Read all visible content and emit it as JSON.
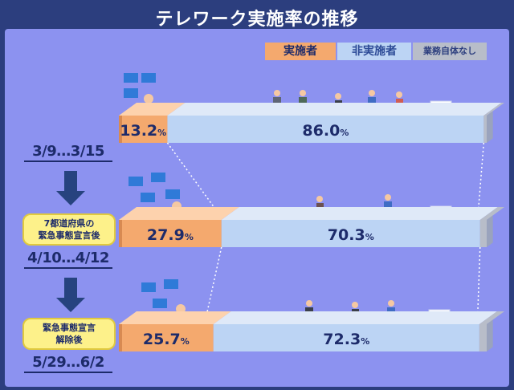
{
  "header": {
    "title": "テレワーク実施率の推移"
  },
  "legend": {
    "done": "実施者",
    "not_done": "非実施者",
    "no_work": "業務自体なし"
  },
  "rows": [
    {
      "period": "3/9…3/15",
      "note": ""
    },
    {
      "period": "4/10…4/12",
      "note": "7都道府県の\n緊急事態宣言後"
    },
    {
      "period": "5/29…6/2",
      "note": "緊急事態宣言\n解除後"
    }
  ],
  "chart_data": {
    "type": "bar",
    "stacked": true,
    "orientation": "horizontal",
    "title": "テレワーク実施率の推移",
    "categories": [
      "3/9…3/15",
      "4/10…4/12",
      "5/29…6/2"
    ],
    "series": [
      {
        "name": "実施者",
        "values": [
          13.2,
          27.9,
          25.7
        ]
      },
      {
        "name": "非実施者",
        "values": [
          86.0,
          70.3,
          72.3
        ]
      },
      {
        "name": "業務自体なし",
        "values": [
          0.8,
          1.8,
          2.0
        ]
      }
    ],
    "unit": "%",
    "xlim": [
      0,
      100
    ]
  },
  "colors": {
    "background": "#2c3e7e",
    "panel": "#8c92f0",
    "done_front": "#f4a96e",
    "done_top": "#fdd2ad",
    "done_side": "#d88a52",
    "not_front": "#bcd4f4",
    "not_top": "#dfe9f8",
    "none_front": "#b8bdc9",
    "dark": "#1d2b6a",
    "arrow": "#26437f"
  }
}
